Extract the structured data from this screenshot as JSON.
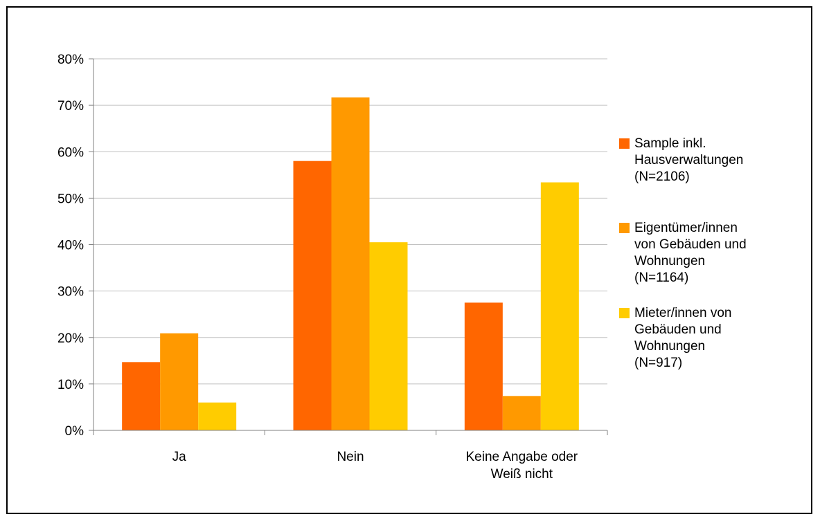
{
  "chart_data": {
    "type": "bar",
    "title": "",
    "xlabel": "",
    "ylabel": "",
    "categories": [
      [
        "Ja"
      ],
      [
        "Nein"
      ],
      [
        "Keine Angabe oder",
        "Weiß nicht"
      ]
    ],
    "ylim": [
      0,
      80
    ],
    "yticks": [
      0,
      10,
      20,
      30,
      40,
      50,
      60,
      70,
      80
    ],
    "ytick_labels": [
      "0%",
      "10%",
      "20%",
      "30%",
      "40%",
      "50%",
      "60%",
      "70%",
      "80%"
    ],
    "grid": true,
    "legend_position": "right",
    "series": [
      {
        "name": [
          "Sample inkl.",
          "Hausverwaltungen",
          "(N=2106)"
        ],
        "color": "#FF6600",
        "values": [
          14.7,
          58.0,
          27.5
        ]
      },
      {
        "name": [
          "Eigentümer/innen",
          "von Gebäuden und",
          "Wohnungen",
          "(N=1164)"
        ],
        "color": "#FF9900",
        "values": [
          20.9,
          71.7,
          7.4
        ]
      },
      {
        "name": [
          "Mieter/innen von",
          "Gebäuden und",
          "Wohnungen",
          "(N=917)"
        ],
        "color": "#FFCC00",
        "values": [
          6.0,
          40.5,
          53.4
        ]
      }
    ]
  }
}
